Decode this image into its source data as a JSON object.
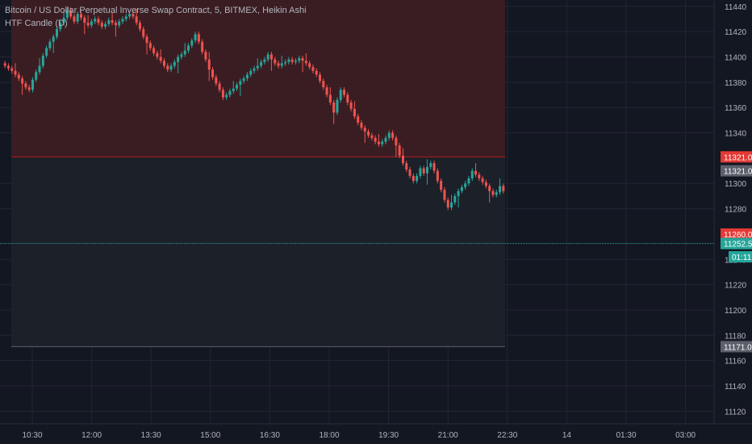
{
  "chart_data": {
    "type": "candlestick",
    "title": "Bitcoin / US Dollar Perpetual Inverse Swap Contract, 5, BITMEX, Heikin Ashi",
    "indicator": "HTF Candle (D)",
    "x_ticks": [
      "10:30",
      "12:00",
      "13:30",
      "15:00",
      "16:30",
      "18:00",
      "19:30",
      "21:00",
      "22:30",
      "14",
      "01:30",
      "03:00"
    ],
    "y_ticks": [
      11440,
      11420,
      11400,
      11380,
      11360,
      11340,
      11300,
      11280,
      11240,
      11220,
      11200,
      11180,
      11160,
      11140,
      11120
    ],
    "ylim": [
      11110,
      11445
    ],
    "colors": {
      "background": "#131722",
      "up": "#26a69a",
      "down": "#ef5350",
      "grid": "#232632",
      "htf_box_upper": "#3a1d22",
      "htf_box_lower": "#1c2029"
    },
    "htf_candle": {
      "open": 11321.0,
      "high": 11445,
      "low": 11171.0
    },
    "price_tags": [
      {
        "label": "11321.0",
        "value": 11321.0,
        "color": "#e53935"
      },
      {
        "label": "11321.0",
        "value": 11310.0,
        "color": "#5d606b"
      },
      {
        "label": "11260.0",
        "value": 11260.0,
        "color": "#e53935"
      },
      {
        "label": "11252.5",
        "value": 11252.5,
        "color": "#26a69a"
      },
      {
        "label": "01:11",
        "value": 11242.0,
        "color": "#26a69a"
      },
      {
        "label": "11171.0",
        "value": 11171.0,
        "color": "#5d606b"
      }
    ],
    "price_line": 11252.5,
    "candle_start": 11395,
    "candle_deltas": [
      -2,
      -2,
      -2,
      -3,
      -3,
      -4,
      -3,
      -2,
      8,
      6,
      5,
      8,
      6,
      5,
      4,
      6,
      5,
      4,
      6,
      -5,
      -4,
      6,
      -3,
      -4,
      -2,
      3,
      2,
      -3,
      -3,
      2,
      3,
      -2,
      -2,
      3,
      2,
      2,
      2,
      -2,
      -5,
      -5,
      -6,
      -5,
      -4,
      -4,
      -3,
      -3,
      -4,
      -3,
      3,
      3,
      4,
      2,
      3,
      4,
      4,
      5,
      -6,
      -8,
      -6,
      -8,
      -6,
      -5,
      -5,
      -6,
      2,
      3,
      2,
      3,
      3,
      2,
      3,
      3,
      2,
      2,
      3,
      2,
      4,
      -4,
      -3,
      -2,
      2,
      1,
      2,
      -2,
      1,
      2,
      -2,
      -2,
      -3,
      -3,
      -3,
      -5,
      -5,
      -6,
      -6,
      -8,
      10,
      8,
      -4,
      -6,
      -5,
      -6,
      -5,
      -4,
      -3,
      -3,
      -2,
      -3,
      -2,
      2,
      3,
      4,
      -4,
      -6,
      -8,
      -6,
      -5,
      -5,
      -4,
      4,
      6,
      -4,
      5,
      3,
      -6,
      -8,
      -7,
      -8,
      -6,
      4,
      5,
      4,
      3,
      3,
      4,
      6,
      -3,
      -3,
      -3,
      -3,
      -4,
      -3,
      2,
      5,
      -4
    ]
  }
}
